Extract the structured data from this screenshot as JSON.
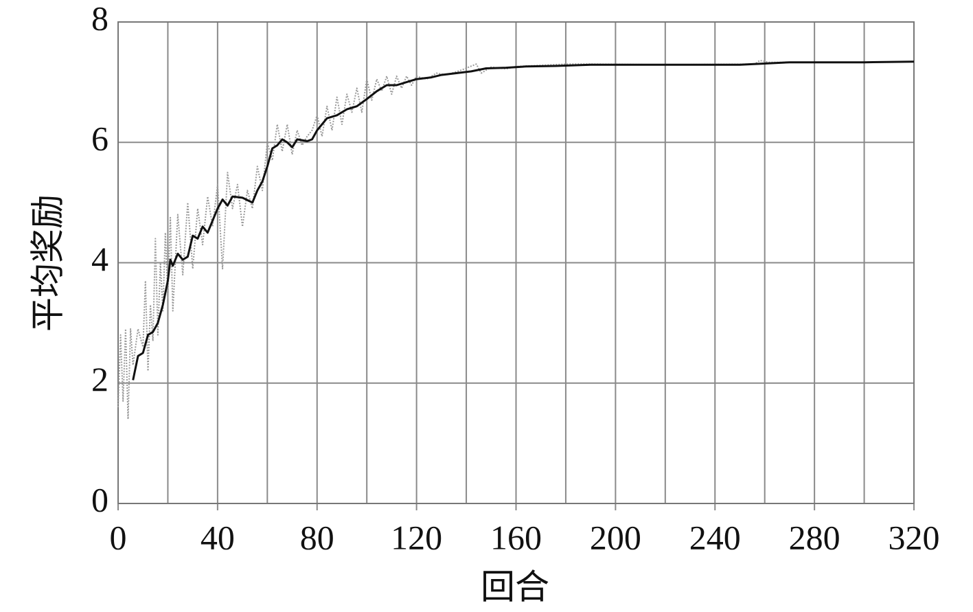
{
  "chart_data": {
    "type": "line",
    "xlabel": "回合",
    "ylabel": "平均奖励",
    "xlim": [
      0,
      320
    ],
    "ylim": [
      0,
      8
    ],
    "xticks": [
      0,
      40,
      80,
      120,
      160,
      200,
      240,
      280,
      320
    ],
    "x_minor_grid": [
      20,
      60,
      100,
      140,
      180,
      220,
      260,
      300
    ],
    "yticks": [
      0,
      2,
      4,
      6,
      8
    ],
    "grid": true,
    "series": [
      {
        "color": "#9a9a9a",
        "style": "dotted",
        "x": [
          0,
          1,
          2,
          3,
          4,
          5,
          6,
          8,
          10,
          11,
          12,
          13,
          14,
          15,
          16,
          17,
          18,
          19,
          20,
          21,
          22,
          24,
          26,
          28,
          30,
          32,
          34,
          36,
          38,
          40,
          42,
          44,
          46,
          48,
          50,
          52,
          54,
          56,
          58,
          60,
          62,
          64,
          66,
          68,
          70,
          72,
          74,
          76,
          78,
          80,
          82,
          84,
          86,
          88,
          90,
          92,
          94,
          96,
          98,
          100,
          102,
          104,
          106,
          108,
          110,
          112,
          114,
          116,
          118,
          120,
          124,
          128,
          132,
          138,
          144,
          146,
          150,
          156,
          160,
          170,
          180,
          190,
          220,
          256,
          258,
          262,
          290,
          320
        ],
        "values": [
          1.6,
          2.8,
          1.7,
          2.9,
          1.4,
          2.9,
          2.3,
          2.9,
          2.6,
          3.7,
          2.2,
          3.3,
          2.7,
          4.4,
          2.8,
          4.0,
          3.2,
          4.5,
          3.4,
          4.75,
          3.2,
          4.8,
          3.8,
          5.0,
          3.9,
          4.9,
          4.3,
          5.1,
          4.6,
          5.3,
          3.9,
          5.5,
          4.9,
          5.3,
          4.6,
          5.2,
          4.9,
          5.6,
          5.2,
          6.0,
          5.7,
          6.3,
          5.85,
          6.3,
          5.8,
          6.2,
          5.95,
          6.1,
          6.2,
          6.45,
          6.1,
          6.6,
          6.2,
          6.75,
          6.3,
          6.8,
          6.5,
          6.9,
          6.5,
          7.05,
          6.7,
          7.05,
          6.85,
          7.1,
          6.8,
          7.1,
          6.9,
          7.1,
          6.95,
          7.1,
          7.05,
          7.15,
          7.12,
          7.2,
          7.3,
          7.15,
          7.25,
          7.22,
          7.26,
          7.28,
          7.3,
          7.3,
          7.29,
          7.3,
          7.36,
          7.33,
          7.33,
          7.34
        ]
      },
      {
        "color": "#111111",
        "style": "solid",
        "x": [
          6,
          8,
          10,
          12,
          14,
          16,
          18,
          20,
          21,
          22,
          24,
          26,
          28,
          30,
          32,
          34,
          36,
          38,
          40,
          42,
          44,
          46,
          50,
          54,
          56,
          58,
          60,
          62,
          64,
          66,
          68,
          70,
          72,
          76,
          78,
          80,
          84,
          88,
          92,
          96,
          100,
          104,
          108,
          112,
          116,
          120,
          126,
          130,
          136,
          142,
          148,
          156,
          164,
          176,
          190,
          220,
          250,
          260,
          270,
          300,
          320
        ],
        "values": [
          2.05,
          2.45,
          2.5,
          2.8,
          2.85,
          3.0,
          3.3,
          3.7,
          4.05,
          3.95,
          4.15,
          4.05,
          4.1,
          4.45,
          4.4,
          4.6,
          4.5,
          4.7,
          4.9,
          5.05,
          4.95,
          5.1,
          5.08,
          5.0,
          5.2,
          5.35,
          5.6,
          5.9,
          5.95,
          6.05,
          6.0,
          5.92,
          6.05,
          6.02,
          6.05,
          6.2,
          6.4,
          6.45,
          6.55,
          6.6,
          6.72,
          6.85,
          6.95,
          6.95,
          7.0,
          7.05,
          7.08,
          7.12,
          7.15,
          7.18,
          7.23,
          7.24,
          7.26,
          7.27,
          7.29,
          7.29,
          7.29,
          7.31,
          7.33,
          7.33,
          7.34
        ]
      }
    ]
  }
}
